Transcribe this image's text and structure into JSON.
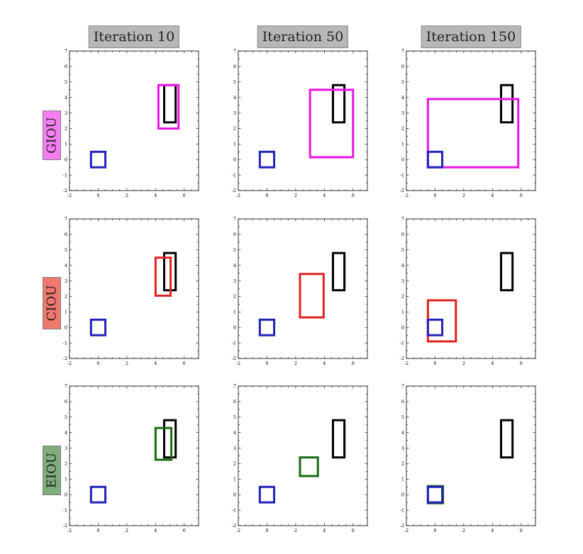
{
  "column_titles": [
    "Iteration 10",
    "Iteration 50",
    "Iteration 150"
  ],
  "row_labels": [
    {
      "text": "GIOU",
      "color": "#f57ef2"
    },
    {
      "text": "CIOU",
      "color": "#f0776e"
    },
    {
      "text": "EIOU",
      "color": "#7fad7c"
    }
  ],
  "chart_data": {
    "type": "grid of box plots",
    "xlim": [
      -2,
      7
    ],
    "ylim": [
      -2,
      7
    ],
    "x_ticks": [
      -2,
      0,
      2,
      4,
      6
    ],
    "y_ticks": [
      -2,
      -1,
      0,
      1,
      2,
      3,
      4,
      5,
      6,
      7
    ],
    "grid": false,
    "colors": {
      "target": "#000000",
      "anchor": "#2222bb",
      "GIOU": "#e815e6",
      "CIOU": "#e12222",
      "EIOU": "#186b10"
    },
    "target_box": {
      "x1": 4.6,
      "y1": 2.4,
      "x2": 5.4,
      "y2": 4.8
    },
    "anchor_box": {
      "x1": -0.5,
      "y1": -0.5,
      "x2": 0.5,
      "y2": 0.5
    },
    "panels": [
      {
        "row": "GIOU",
        "column": "Iteration 10",
        "box": {
          "x1": 4.2,
          "y1": 2.0,
          "x2": 5.6,
          "y2": 4.8
        }
      },
      {
        "row": "GIOU",
        "column": "Iteration 50",
        "box": {
          "x1": 3.0,
          "y1": 0.15,
          "x2": 6.0,
          "y2": 4.5
        }
      },
      {
        "row": "GIOU",
        "column": "Iteration 150",
        "box": {
          "x1": -0.5,
          "y1": -0.5,
          "x2": 5.8,
          "y2": 3.9
        }
      },
      {
        "row": "CIOU",
        "column": "Iteration 10",
        "box": {
          "x1": 4.0,
          "y1": 2.05,
          "x2": 5.05,
          "y2": 4.5
        }
      },
      {
        "row": "CIOU",
        "column": "Iteration 50",
        "box": {
          "x1": 2.3,
          "y1": 0.65,
          "x2": 3.95,
          "y2": 3.45
        }
      },
      {
        "row": "CIOU",
        "column": "Iteration 150",
        "box": {
          "x1": -0.5,
          "y1": -0.9,
          "x2": 1.45,
          "y2": 1.75
        }
      },
      {
        "row": "EIOU",
        "column": "Iteration 10",
        "box": {
          "x1": 4.0,
          "y1": 2.25,
          "x2": 5.1,
          "y2": 4.3
        }
      },
      {
        "row": "EIOU",
        "column": "Iteration 50",
        "box": {
          "x1": 2.3,
          "y1": 1.2,
          "x2": 3.55,
          "y2": 2.4
        }
      },
      {
        "row": "EIOU",
        "column": "Iteration 150",
        "box": {
          "x1": -0.5,
          "y1": -0.55,
          "x2": 0.55,
          "y2": 0.55
        }
      }
    ]
  }
}
